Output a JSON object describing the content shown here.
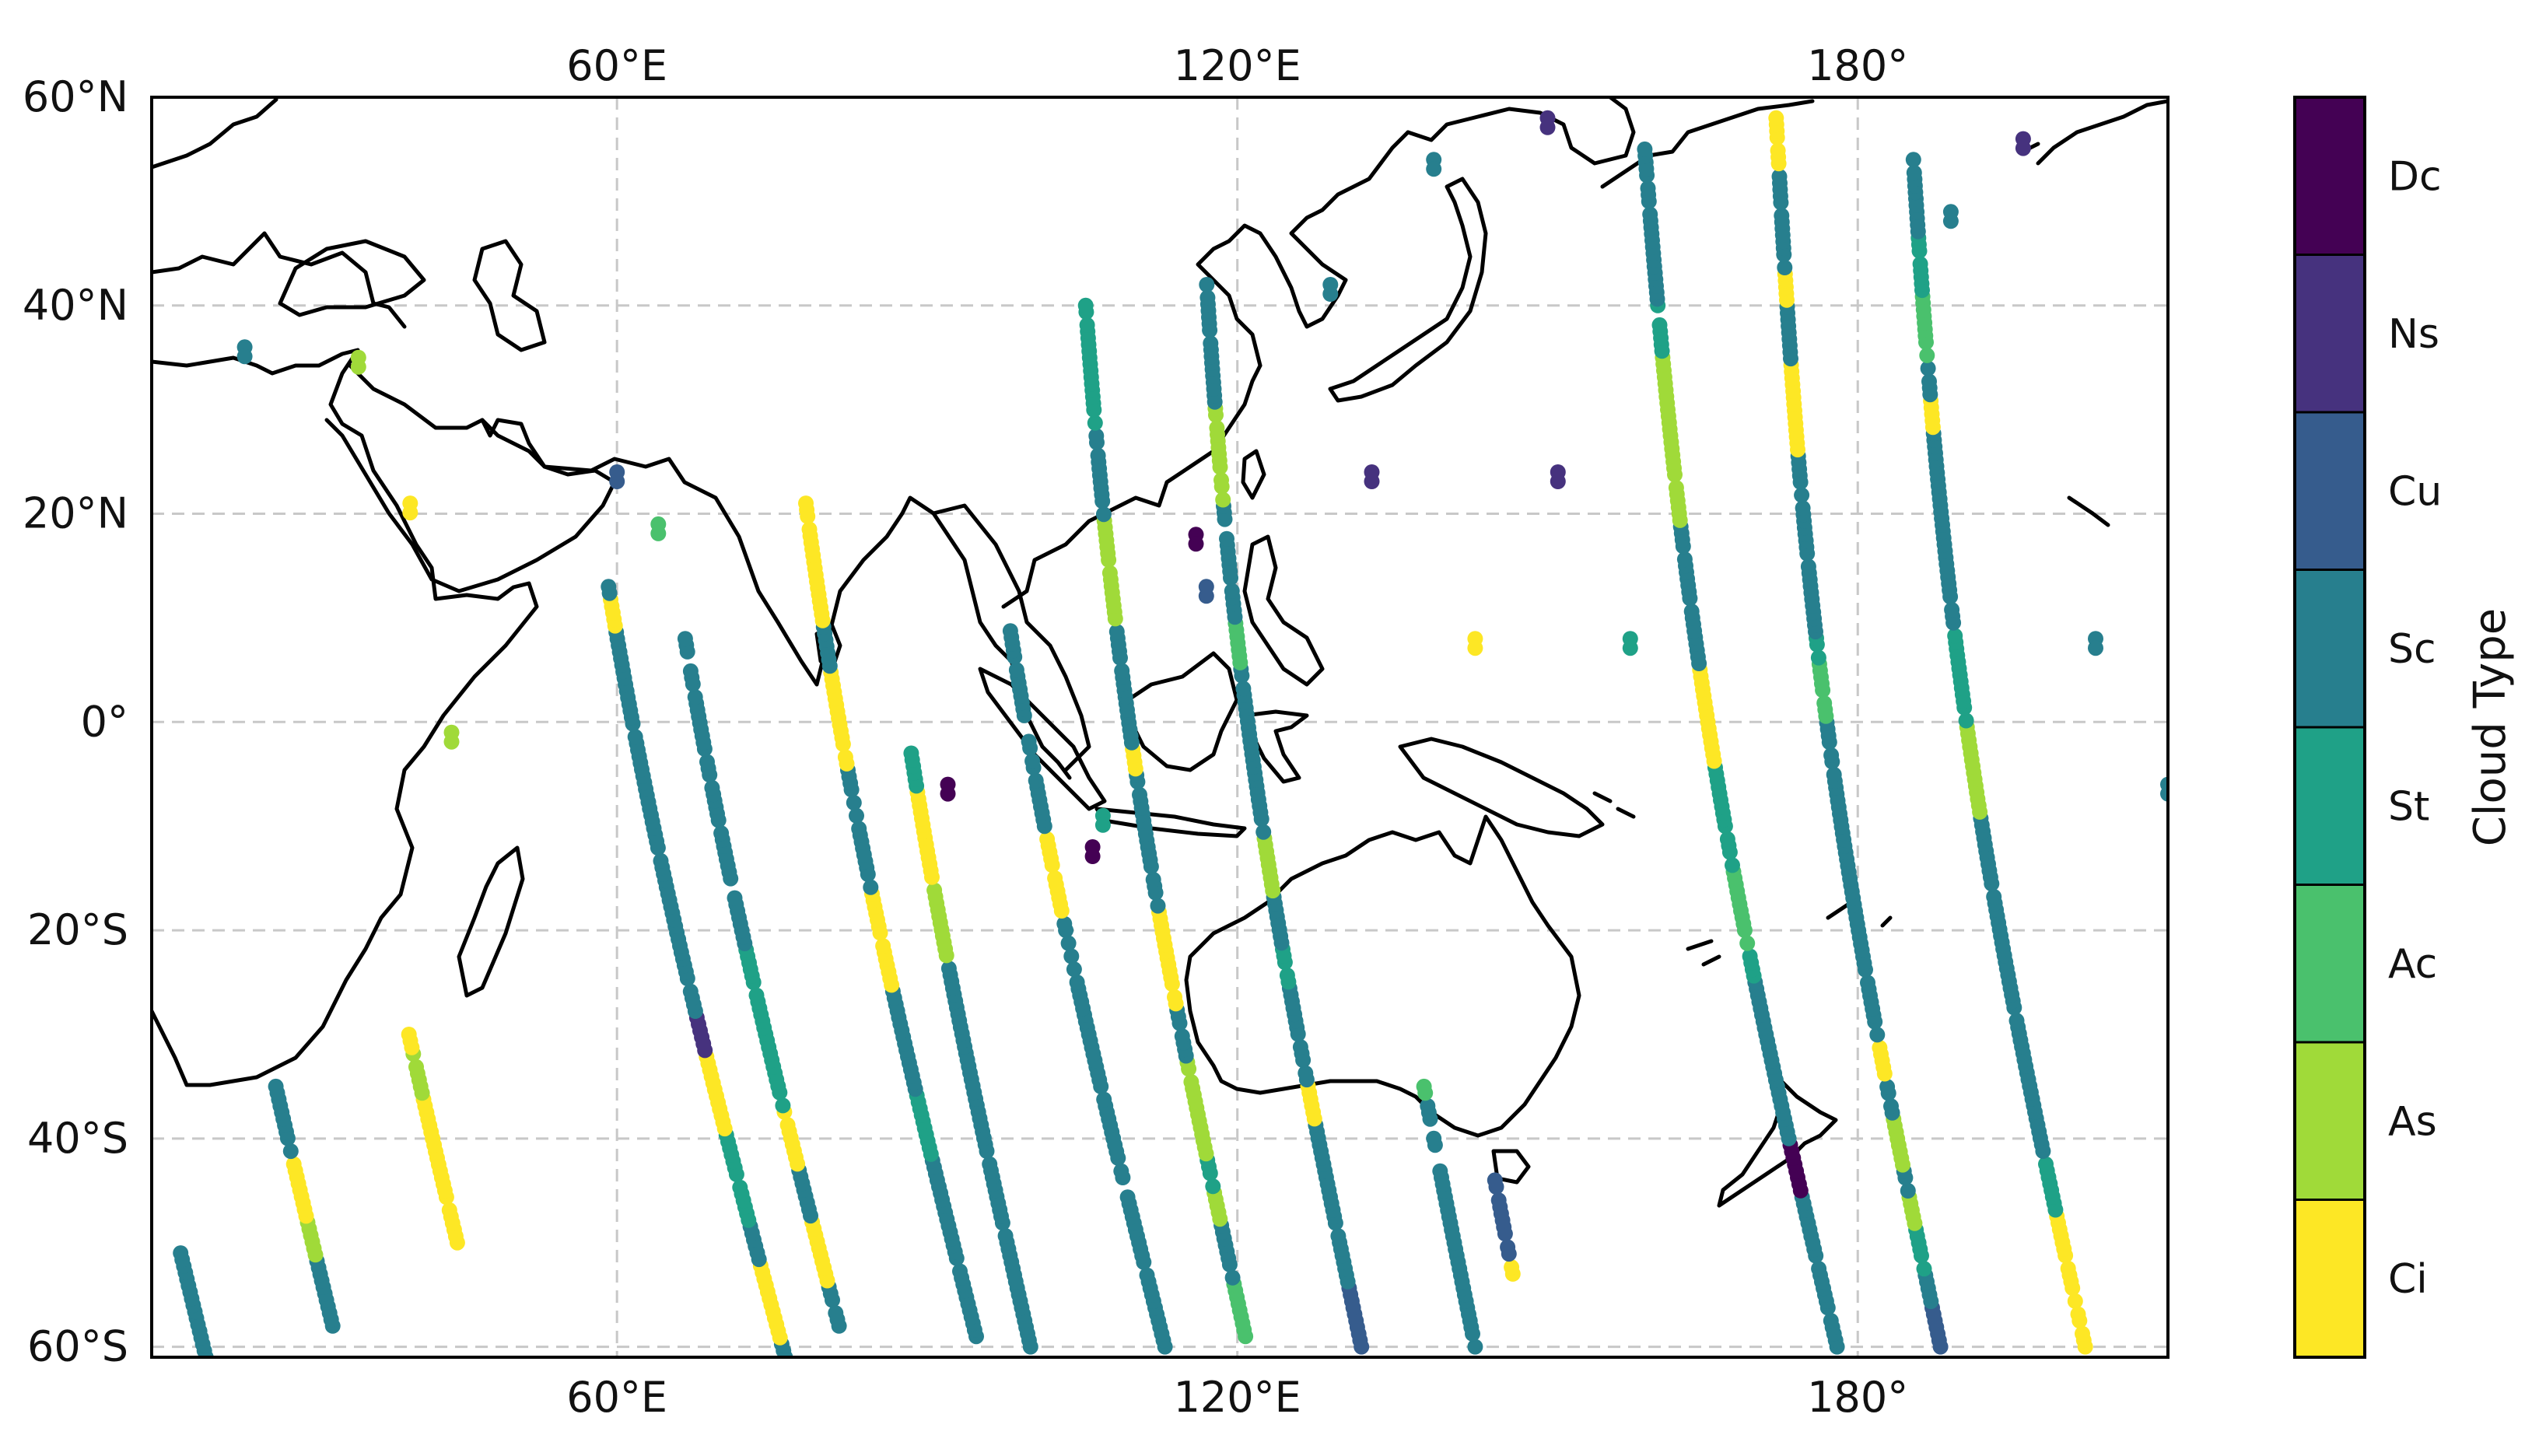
{
  "map": {
    "extent": {
      "lon_min": 15,
      "lon_max": 210,
      "lat_min": -61,
      "lat_max": 60
    },
    "x_ticks": [
      {
        "lon": 60,
        "label": "60°E"
      },
      {
        "lon": 120,
        "label": "120°E"
      },
      {
        "lon": 180,
        "label": "180°"
      }
    ],
    "y_ticks": [
      {
        "lat": 60,
        "label": "60°N"
      },
      {
        "lat": 40,
        "label": "40°N"
      },
      {
        "lat": 20,
        "label": "20°N"
      },
      {
        "lat": 0,
        "label": "0°"
      },
      {
        "lat": -20,
        "label": "20°S"
      },
      {
        "lat": -40,
        "label": "40°S"
      },
      {
        "lat": -60,
        "label": "60°S"
      }
    ],
    "gridlines": true,
    "grid_color": "#c8c8c8"
  },
  "colorbar": {
    "title": "Cloud Type",
    "categories": [
      {
        "label": "Dc",
        "color": "#440154"
      },
      {
        "label": "Ns",
        "color": "#46327e"
      },
      {
        "label": "Cu",
        "color": "#365c8d"
      },
      {
        "label": "Sc",
        "color": "#277f8e"
      },
      {
        "label": "St",
        "color": "#1fa187"
      },
      {
        "label": "Ac",
        "color": "#4ac16d"
      },
      {
        "label": "As",
        "color": "#a0da39"
      },
      {
        "label": "Ci",
        "color": "#fde725"
      }
    ]
  },
  "chart_data": {
    "type": "scatter",
    "description_of_encoding": "",
    "tracks": [
      {
        "lon_at_60S": 20,
        "lon_at_60N": 0,
        "lat_from": -61,
        "lat_to": -51
      },
      {
        "lon_at_60S": 33,
        "lon_at_60N": 13,
        "lat_from": -58,
        "lat_to": -35
      },
      {
        "lon_at_60S": 47,
        "lon_at_60N": 27,
        "lat_from": -50,
        "lat_to": -30
      },
      {
        "lon_at_60S": 76,
        "lon_at_60N": 53,
        "lat_from": -61,
        "lat_to": 13
      },
      {
        "lon_at_60S": 82,
        "lon_at_60N": 60,
        "lat_from": -58,
        "lat_to": 8
      },
      {
        "lon_at_60S": 95,
        "lon_at_60N": 74,
        "lat_from": -59,
        "lat_to": 21
      },
      {
        "lon_at_60S": 100,
        "lon_at_60N": 82,
        "lat_from": -60,
        "lat_to": -3
      },
      {
        "lon_at_60S": 113,
        "lon_at_60N": 92,
        "lat_from": -60,
        "lat_to": 10
      },
      {
        "lon_at_60S": 121,
        "lon_at_60N": 104,
        "lat_from": -59,
        "lat_to": 40
      },
      {
        "lon_at_60S": 132,
        "lon_at_60N": 116,
        "lat_from": -60,
        "lat_to": 42
      },
      {
        "lon_at_60S": 143,
        "lon_at_60N": 128,
        "lat_from": -60,
        "lat_to": -35
      },
      {
        "lon_at_60S": 148,
        "lon_at_60N": 134,
        "lat_from": -53,
        "lat_to": -44
      },
      {
        "lon_at_60S": 178,
        "lon_at_60N": 159,
        "lat_from": -60,
        "lat_to": 55
      },
      {
        "lon_at_60S": 188,
        "lon_at_60N": 172,
        "lat_from": -60,
        "lat_to": 58
      },
      {
        "lon_at_60S": 202,
        "lon_at_60N": 185,
        "lat_from": -60,
        "lat_to": 54
      }
    ],
    "isolated_points": [
      {
        "lon": 60,
        "lat": 24,
        "type": "Cu"
      },
      {
        "lon": 64,
        "lat": 19,
        "type": "Ac"
      },
      {
        "lon": 116,
        "lat": 18,
        "type": "Dc"
      },
      {
        "lon": 117,
        "lat": 13,
        "type": "Cu"
      },
      {
        "lon": 129,
        "lat": 42,
        "type": "Sc"
      },
      {
        "lon": 133,
        "lat": 24,
        "type": "Ns"
      },
      {
        "lon": 151,
        "lat": 24,
        "type": "Ns"
      },
      {
        "lon": 143,
        "lat": 8,
        "type": "Ci"
      },
      {
        "lon": 158,
        "lat": 8,
        "type": "St"
      },
      {
        "lon": 203,
        "lat": 8,
        "type": "Sc"
      },
      {
        "lon": 210,
        "lat": -6,
        "type": "Sc"
      },
      {
        "lon": 189,
        "lat": 49,
        "type": "Sc"
      },
      {
        "lon": 196,
        "lat": 56,
        "type": "Ns"
      },
      {
        "lon": 150,
        "lat": 58,
        "type": "Ns"
      },
      {
        "lon": 139,
        "lat": 54,
        "type": "Sc"
      },
      {
        "lon": 24,
        "lat": 36,
        "type": "Sc"
      },
      {
        "lon": 35,
        "lat": 35,
        "type": "As"
      },
      {
        "lon": 44,
        "lat": -1,
        "type": "As"
      },
      {
        "lon": 40,
        "lat": 21,
        "type": "Ci"
      },
      {
        "lon": 92,
        "lat": -6,
        "type": "Dc"
      },
      {
        "lon": 106,
        "lat": -12,
        "type": "Dc"
      },
      {
        "lon": 107,
        "lat": -9,
        "type": "St"
      }
    ]
  }
}
